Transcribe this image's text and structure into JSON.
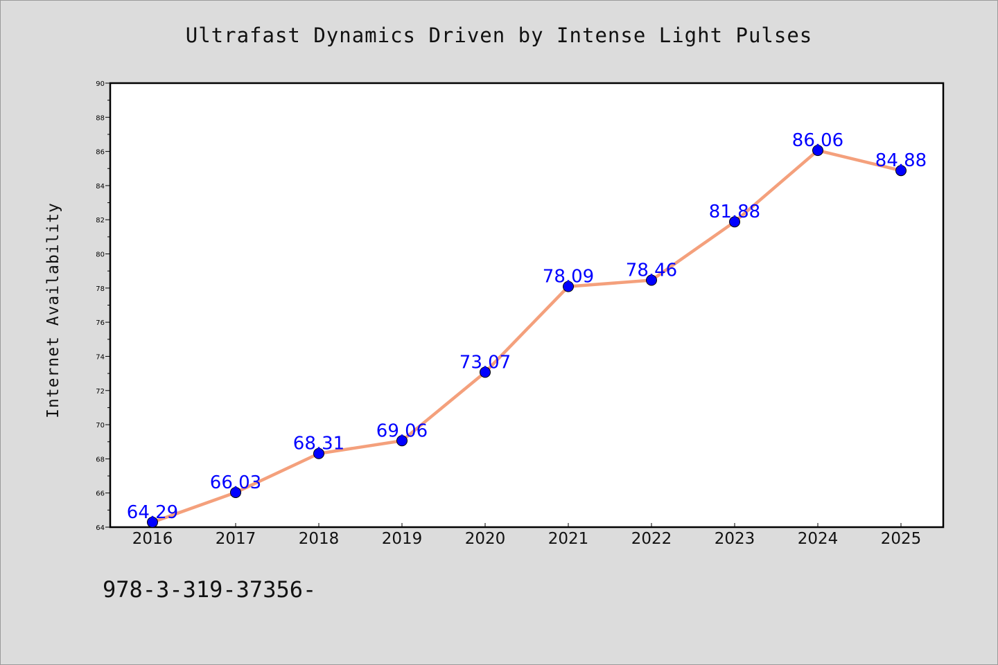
{
  "chart_data": {
    "type": "line",
    "title": "Ultrafast Dynamics Driven by Intense Light Pulses",
    "xlabel": "",
    "ylabel": "Internet Availability",
    "categories": [
      "2016",
      "2017",
      "2018",
      "2019",
      "2020",
      "2021",
      "2022",
      "2023",
      "2024",
      "2025"
    ],
    "values": [
      64.29,
      66.03,
      68.31,
      69.06,
      73.07,
      78.09,
      78.46,
      81.88,
      86.06,
      84.88
    ],
    "data_labels": [
      "64.29",
      "66.03",
      "68.31",
      "69.06",
      "73.07",
      "78.09",
      "78.46",
      "81.88",
      "86.06",
      "84.88"
    ],
    "ylim": [
      64,
      90
    ],
    "yticks": [
      64,
      66,
      68,
      70,
      72,
      74,
      76,
      78,
      80,
      82,
      84,
      86,
      88,
      90
    ],
    "grid": false,
    "line_color": "#f4a07c",
    "marker_color": "#0000ff",
    "label_color": "#0000ff"
  },
  "footer_text": "978-3-319-37356-"
}
